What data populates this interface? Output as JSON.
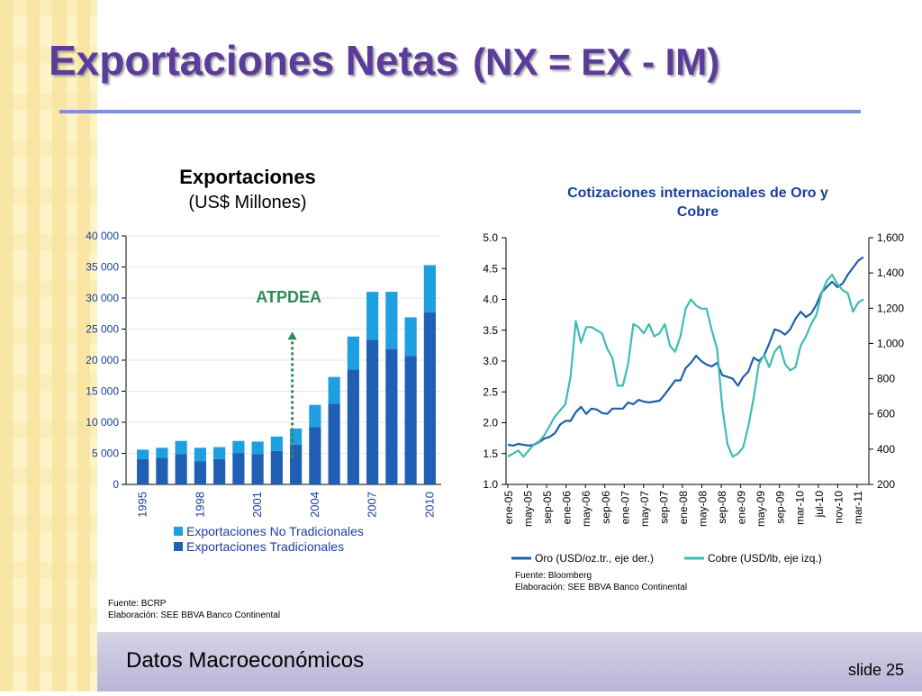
{
  "slide": {
    "title_main": "Exportaciones Netas",
    "title_paren": "(NX = EX - IM)",
    "footer_text": "Datos Macroeconómicos",
    "slide_number": "slide 25",
    "colors": {
      "title": "#5b3c9a",
      "stripe_light": "#fdf3c7",
      "stripe_dark": "#f7e29a",
      "rule": "#7f8fd8"
    }
  },
  "chart_data": [
    {
      "type": "bar",
      "stacked": true,
      "title": "Exportaciones",
      "subtitle": "(US$ Millones)",
      "categories": [
        "1995",
        "1996",
        "1997",
        "1998",
        "1999",
        "2000",
        "2001",
        "2002",
        "2003",
        "2004",
        "2005",
        "2006",
        "2007",
        "2008",
        "2009",
        "2010"
      ],
      "x_tick_labels": [
        "1995",
        "1998",
        "2001",
        "2004",
        "2007",
        "2010"
      ],
      "y_tick_labels": [
        "0",
        "5 000",
        "10 000",
        "15 000",
        "20 000",
        "25 000",
        "30 000",
        "35 000",
        "40 000"
      ],
      "ylim": [
        0,
        40000
      ],
      "series": [
        {
          "name": "Exportaciones Tradicionales",
          "color": "#1f5fb4",
          "values": [
            4100,
            4300,
            4900,
            3700,
            4100,
            5000,
            4900,
            5400,
            6400,
            9200,
            13000,
            18500,
            23300,
            21800,
            20700,
            27700
          ]
        },
        {
          "name": "Exportaciones No Tradicionales",
          "color": "#1ea0e0",
          "values": [
            1500,
            1600,
            2100,
            2200,
            1900,
            2000,
            2000,
            2300,
            2600,
            3600,
            4300,
            5300,
            7700,
            9200,
            6200,
            7600
          ]
        }
      ],
      "legend_order": [
        "Exportaciones No Tradicionales",
        "Exportaciones Tradicionales"
      ],
      "legend_position": "bottom",
      "annotation": {
        "text": "ATPDEA",
        "color": "#2e8b57"
      },
      "source_lines": [
        "Fuente: BCRP",
        "Elaboración: SEE BBVA Banco Continental"
      ]
    },
    {
      "type": "line",
      "title": "Cotizaciones internacionales de Oro y Cobre",
      "x_tick_labels": [
        "ene-05",
        "may-05",
        "sep-05",
        "ene-06",
        "may-06",
        "sep-06",
        "ene-07",
        "may-07",
        "sep-07",
        "ene-08",
        "may-08",
        "sep-08",
        "ene-09",
        "may-09",
        "sep-09",
        "mar-10",
        "jul-10",
        "nov-10",
        "mar-11"
      ],
      "y_left_tick_labels": [
        "1.0",
        "1.5",
        "2.0",
        "2.5",
        "3.0",
        "3.5",
        "4.0",
        "4.5",
        "5.0"
      ],
      "y_right_tick_labels": [
        "200",
        "400",
        "600",
        "800",
        "1,000",
        "1,200",
        "1,400",
        "1,600"
      ],
      "y_left_lim": [
        1.0,
        5.0
      ],
      "y_right_lim": [
        200,
        1600
      ],
      "series": [
        {
          "name": "Oro (USD/oz.tr., eje der.)",
          "axis": "right",
          "color": "#1f5fa8",
          "values": [
            425,
            420,
            430,
            425,
            420,
            425,
            440,
            460,
            470,
            490,
            540,
            560,
            560,
            610,
            640,
            600,
            630,
            625,
            605,
            600,
            630,
            630,
            630,
            665,
            655,
            680,
            670,
            665,
            670,
            675,
            710,
            750,
            790,
            790,
            860,
            890,
            930,
            900,
            880,
            870,
            890,
            820,
            810,
            800,
            760,
            810,
            840,
            920,
            900,
            930,
            1000,
            1080,
            1070,
            1050,
            1080,
            1140,
            1180,
            1150,
            1170,
            1220,
            1290,
            1320,
            1350,
            1320,
            1340,
            1390,
            1430,
            1470,
            1490
          ]
        },
        {
          "name": "Cobre (USD/lb, eje izq.)",
          "axis": "left",
          "color": "#3cbcb4",
          "values": [
            1.45,
            1.5,
            1.55,
            1.45,
            1.55,
            1.65,
            1.7,
            1.8,
            1.95,
            2.1,
            2.2,
            2.3,
            2.75,
            3.65,
            3.3,
            3.55,
            3.55,
            3.5,
            3.45,
            3.2,
            3.05,
            2.6,
            2.6,
            2.95,
            3.6,
            3.55,
            3.45,
            3.6,
            3.4,
            3.45,
            3.6,
            3.25,
            3.15,
            3.4,
            3.85,
            4.0,
            3.9,
            3.85,
            3.85,
            3.5,
            3.2,
            2.25,
            1.65,
            1.45,
            1.5,
            1.6,
            1.95,
            2.4,
            2.95,
            3.1,
            2.9,
            3.15,
            3.25,
            2.95,
            2.85,
            2.9,
            3.25,
            3.4,
            3.6,
            3.75,
            4.1,
            4.3,
            4.4,
            4.25,
            4.15,
            4.1,
            3.8,
            3.95,
            4.0
          ]
        }
      ],
      "legend_position": "bottom",
      "source_lines": [
        "Fuente: Bloomberg",
        "Elaboración: SEE BBVA Banco Continental"
      ]
    }
  ]
}
